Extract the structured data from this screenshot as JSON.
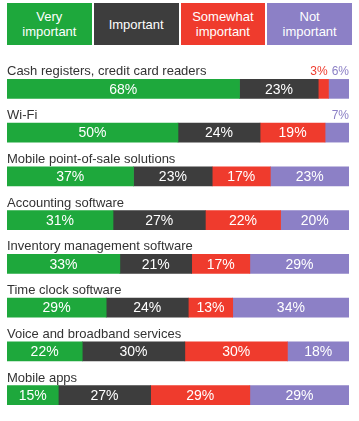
{
  "chart_data": {
    "type": "bar",
    "orientation": "horizontal",
    "stacked": true,
    "data_labels": true,
    "legend": "top",
    "grid": false,
    "tick_labels": "y",
    "categories": [
      "Cash registers, credit card readers",
      "Wi-Fi",
      "Mobile point-of-sale solutions",
      "Accounting software",
      "Inventory management software",
      "Time clock software",
      "Voice and broadband services",
      "Mobile apps"
    ],
    "xlim": [
      0,
      100
    ],
    "series": [
      {
        "name": "Very important",
        "color": "#1ea83c",
        "values": [
          68,
          50,
          37,
          31,
          33,
          29,
          22,
          15
        ],
        "value_labels": [
          "68%",
          "50%",
          "37%",
          "31%",
          "33%",
          "29%",
          "22%",
          "15%"
        ]
      },
      {
        "name": "Important",
        "color": "#3d3d3d",
        "values": [
          23,
          24,
          23,
          27,
          21,
          24,
          30,
          27
        ],
        "value_labels": [
          "23%",
          "24%",
          "23%",
          "27%",
          "21%",
          "24%",
          "30%",
          "27%"
        ]
      },
      {
        "name": "Somewhat important",
        "color": "#ef3b2d",
        "values": [
          3,
          19,
          17,
          22,
          17,
          13,
          30,
          29
        ],
        "value_labels": [
          "3%",
          "19%",
          "17%",
          "22%",
          "17%",
          "13%",
          "30%",
          "29%"
        ]
      },
      {
        "name": "Not important",
        "color": "#8c80c6",
        "values": [
          6,
          7,
          23,
          20,
          29,
          34,
          18,
          29
        ],
        "value_labels": [
          "6%",
          "7%",
          "23%",
          "20%",
          "29%",
          "34%",
          "18%",
          "29%"
        ]
      }
    ]
  }
}
